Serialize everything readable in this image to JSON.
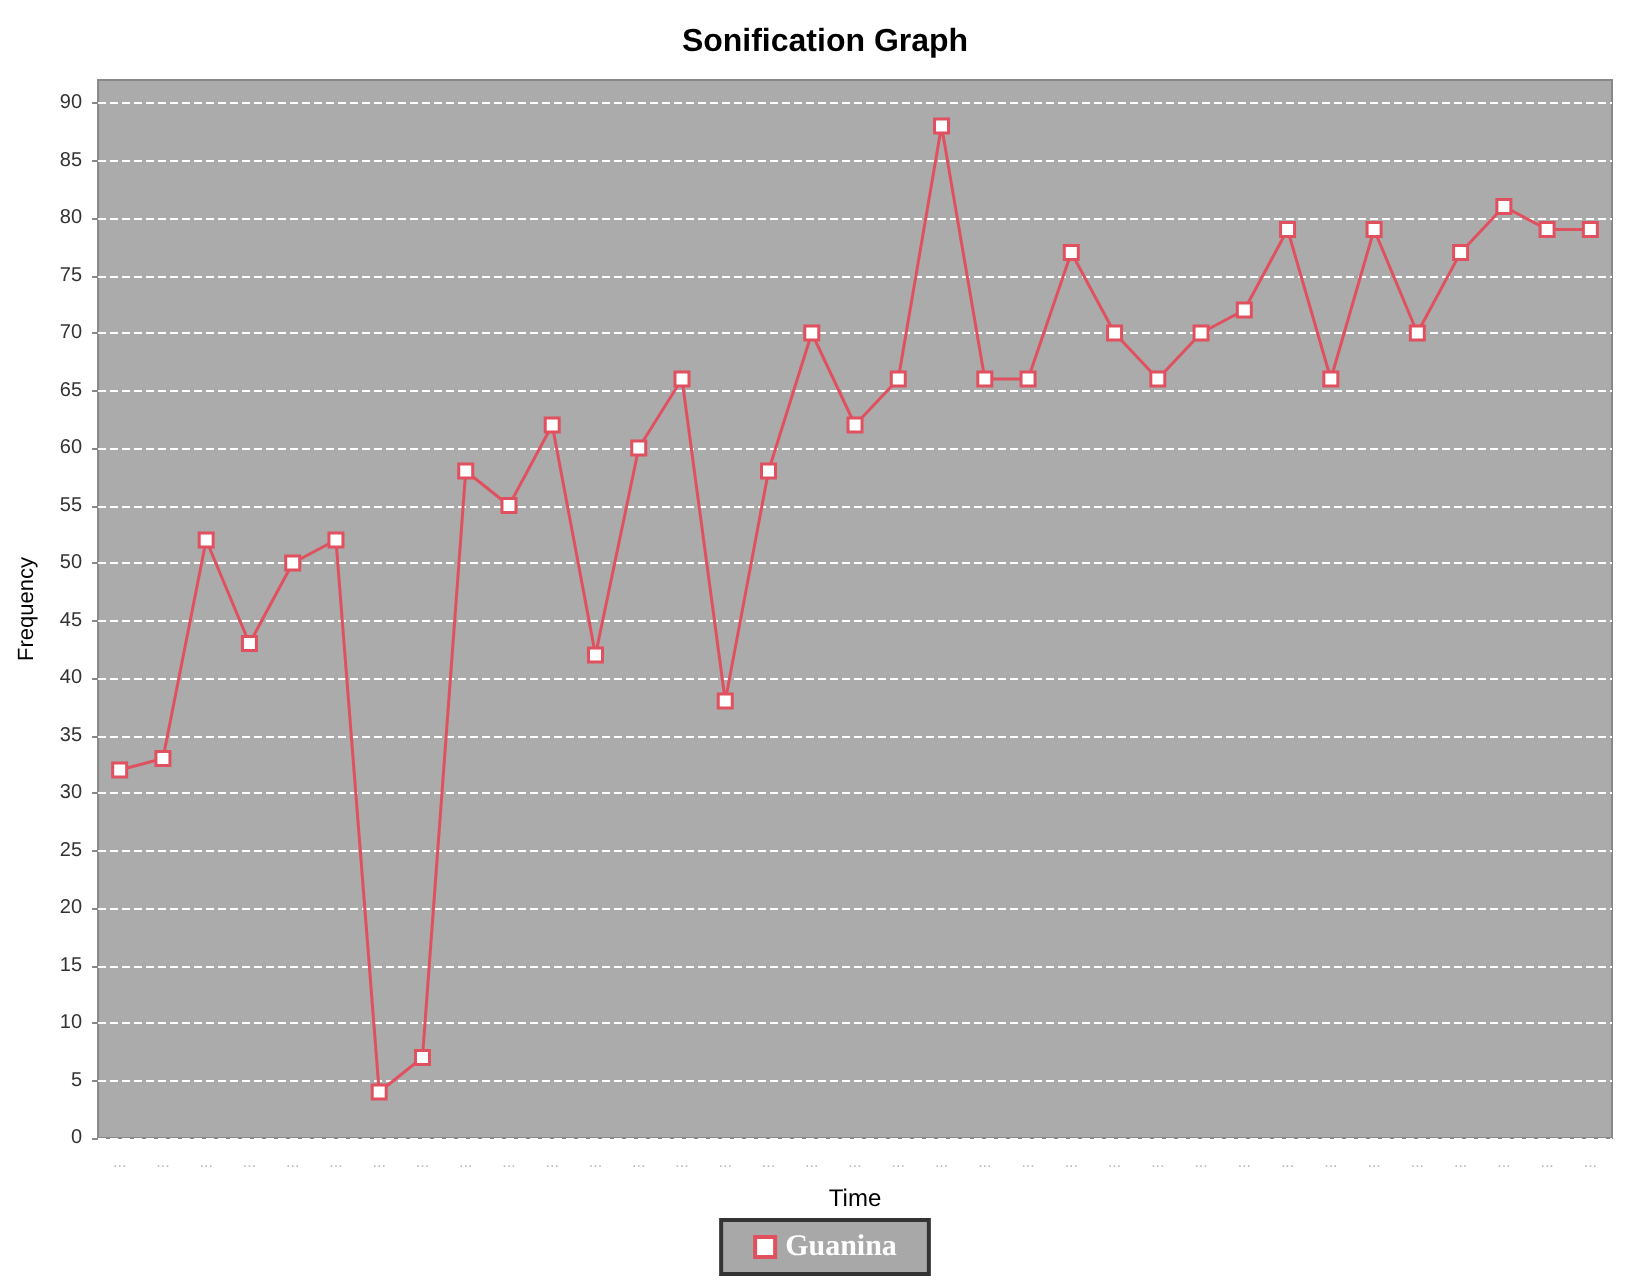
{
  "chart_data": {
    "type": "line",
    "title": "Sonification Graph",
    "xlabel": "Time",
    "ylabel": "Frequency",
    "categories": [
      "...",
      "...",
      "...",
      "...",
      "...",
      "...",
      "...",
      "...",
      "...",
      "...",
      "...",
      "...",
      "...",
      "...",
      "...",
      "...",
      "...",
      "...",
      "...",
      "...",
      "...",
      "...",
      "...",
      "...",
      "...",
      "...",
      "...",
      "...",
      "...",
      "...",
      "...",
      "...",
      "...",
      "...",
      "..."
    ],
    "series": [
      {
        "name": "Guanina",
        "color": "#e0505f",
        "values": [
          32,
          33,
          52,
          43,
          50,
          52,
          4,
          7,
          58,
          55,
          62,
          42,
          60,
          66,
          38,
          58,
          70,
          62,
          66,
          88,
          66,
          66,
          77,
          70,
          66,
          70,
          72,
          79,
          66,
          79,
          70,
          77,
          81,
          79,
          79
        ]
      }
    ],
    "ylim": [
      0,
      92
    ],
    "yticks": [
      0,
      5,
      10,
      15,
      20,
      25,
      30,
      35,
      40,
      45,
      50,
      55,
      60,
      65,
      70,
      75,
      80,
      85,
      90
    ],
    "grid": "y",
    "legend": "bottom",
    "marker": "square",
    "line_style": "solid"
  }
}
